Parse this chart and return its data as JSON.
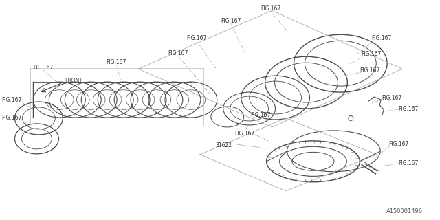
{
  "bg_color": "#ffffff",
  "line_color": "#4a4a4a",
  "label_color": "#333333",
  "fig_label": "FIG.167",
  "part_label": "31622",
  "watermark": "A150001496",
  "fs": 5.5,
  "watermark_fs": 6.0
}
